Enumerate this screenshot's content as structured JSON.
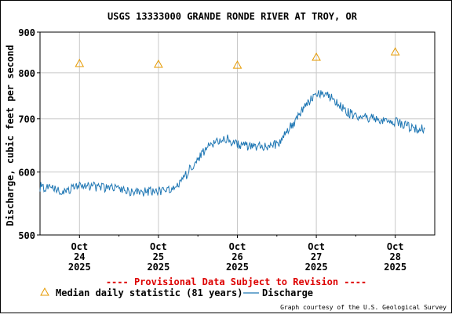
{
  "chart_data": {
    "type": "line",
    "title": "USGS 13333000 GRANDE RONDE RIVER AT TROY, OR",
    "ylabel": "Discharge, cubic feet per second",
    "y_scale": "log",
    "ylim": [
      500,
      900
    ],
    "y_ticks": [
      500,
      600,
      700,
      800,
      900
    ],
    "x_ticks": [
      {
        "month": "Oct",
        "day": "24",
        "year": "2025",
        "date": "2025-10-24"
      },
      {
        "month": "Oct",
        "day": "25",
        "year": "2025",
        "date": "2025-10-25"
      },
      {
        "month": "Oct",
        "day": "26",
        "year": "2025",
        "date": "2025-10-26"
      },
      {
        "month": "Oct",
        "day": "27",
        "year": "2025",
        "date": "2025-10-27"
      },
      {
        "month": "Oct",
        "day": "28",
        "year": "2025",
        "date": "2025-10-28"
      }
    ],
    "xlim": [
      "2025-10-23 12:00",
      "2025-10-28 12:00"
    ],
    "grid": true,
    "series": [
      {
        "name": "Discharge",
        "color": "#1f77b4",
        "style": "line",
        "x": [
          "2025-10-23 12:00",
          "2025-10-23 18:00",
          "2025-10-24 00:00",
          "2025-10-24 06:00",
          "2025-10-24 12:00",
          "2025-10-24 18:00",
          "2025-10-25 00:00",
          "2025-10-25 06:00",
          "2025-10-25 09:00",
          "2025-10-25 12:00",
          "2025-10-25 15:00",
          "2025-10-25 18:00",
          "2025-10-25 21:00",
          "2025-10-26 00:00",
          "2025-10-26 06:00",
          "2025-10-26 12:00",
          "2025-10-26 15:00",
          "2025-10-26 18:00",
          "2025-10-26 21:00",
          "2025-10-27 00:00",
          "2025-10-27 03:00",
          "2025-10-27 06:00",
          "2025-10-27 09:00",
          "2025-10-27 12:00",
          "2025-10-27 18:00",
          "2025-10-28 00:00",
          "2025-10-28 06:00",
          "2025-10-28 09:00"
        ],
        "values": [
          575,
          568,
          575,
          575,
          570,
          565,
          568,
          575,
          600,
          625,
          645,
          655,
          660,
          650,
          645,
          650,
          675,
          700,
          730,
          750,
          755,
          735,
          715,
          705,
          700,
          695,
          680,
          680
        ]
      },
      {
        "name": "Median daily statistic (81 years)",
        "color": "#e69a00",
        "style": "triangle",
        "x": [
          "2025-10-24 00:00",
          "2025-10-25 00:00",
          "2025-10-26 00:00",
          "2025-10-27 00:00",
          "2025-10-28 00:00"
        ],
        "values": [
          822,
          820,
          818,
          837,
          850
        ]
      }
    ],
    "provisional_note": "---- Provisional Data Subject to Revision ----",
    "legend": {
      "median_label": "Median daily statistic (81 years)",
      "discharge_label": "Discharge",
      "placement": "bottom"
    },
    "credit": "Graph courtesy of the U.S. Geological Survey",
    "colors": {
      "grid": "#c8c8c8",
      "provisional": "#dd0000",
      "median": "#e69a00",
      "discharge": "#1f77b4"
    }
  }
}
